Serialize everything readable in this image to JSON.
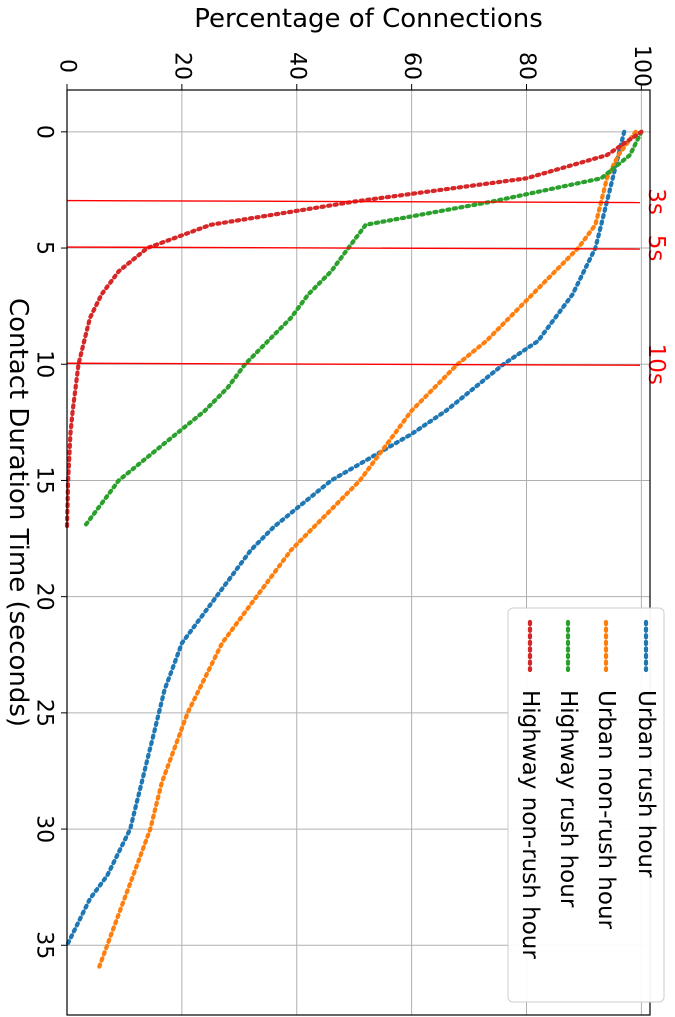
{
  "chart_data": {
    "type": "line",
    "title": "",
    "xlabel": "Contact Duration Time (seconds)",
    "ylabel": "Percentage of Connections",
    "xlim": [
      -1.8,
      38
    ],
    "ylim": [
      0,
      101.5
    ],
    "x_ticks": [
      0,
      5,
      10,
      15,
      20,
      25,
      30,
      35
    ],
    "y_ticks": [
      0,
      20,
      40,
      60,
      80,
      100
    ],
    "grid": true,
    "orientation": "rotated-90-clockwise",
    "legend": {
      "placement": "bottom-right",
      "entries": [
        "Urban rush hour",
        "Urban non-rush hour",
        "Highway rush hour",
        "Highway non-rush hour"
      ]
    },
    "series": [
      {
        "name": "Urban rush hour",
        "color": "#1f77b4",
        "style": "dotted",
        "x": [
          0,
          1,
          2,
          3,
          4,
          5,
          6,
          7,
          8,
          9,
          10,
          11,
          12,
          13,
          14,
          15,
          16,
          17,
          18,
          19,
          20,
          21,
          22,
          23,
          24,
          25,
          26,
          27,
          28,
          29,
          30,
          31,
          32,
          33,
          34,
          35
        ],
        "y": [
          97,
          96,
          95,
          94,
          93,
          92,
          90,
          88,
          85,
          82,
          76,
          71,
          66,
          60,
          53,
          46,
          41,
          36,
          32,
          29,
          26,
          23,
          20,
          18.5,
          17,
          16,
          15,
          14,
          13,
          12,
          11,
          9,
          7,
          4,
          2,
          0
        ]
      },
      {
        "name": "Urban non-rush hour",
        "color": "#ff7f0e",
        "style": "dotted",
        "x": [
          0,
          1,
          2,
          3,
          4,
          5,
          6,
          7,
          8,
          9,
          10,
          11,
          12,
          13,
          14,
          15,
          16,
          17,
          18,
          19,
          20,
          21,
          22,
          23,
          24,
          25,
          26,
          27,
          28,
          29,
          30,
          31,
          32,
          33,
          34,
          35,
          36
        ],
        "y": [
          99,
          96,
          94,
          93,
          92,
          89,
          85,
          81,
          77,
          73,
          68,
          64,
          60,
          57,
          54,
          51,
          47,
          43,
          39,
          36,
          33,
          30,
          27,
          25,
          23,
          21,
          19.5,
          18,
          16.5,
          15.5,
          14.5,
          13,
          11.5,
          10,
          8.5,
          7,
          5.5
        ]
      },
      {
        "name": "Highway rush hour",
        "color": "#2ca02c",
        "style": "dotted",
        "x": [
          0,
          1,
          2,
          3,
          4,
          5,
          6,
          7,
          8,
          9,
          10,
          11,
          12,
          13,
          14,
          15,
          16,
          17
        ],
        "y": [
          100,
          98,
          93,
          74,
          52,
          49,
          46,
          42,
          39,
          35,
          31,
          28,
          24,
          19,
          14,
          9,
          6,
          3
        ]
      },
      {
        "name": "Highway non-rush hour",
        "color": "#d62728",
        "style": "dotted",
        "x": [
          0,
          1,
          2,
          3,
          4,
          5,
          6,
          7,
          8,
          9,
          10,
          11,
          12,
          13,
          14,
          15,
          16,
          17
        ],
        "y": [
          100,
          94,
          80,
          50,
          25,
          14,
          9,
          6,
          4,
          3,
          2,
          1.5,
          1,
          0.6,
          0.4,
          0.2,
          0.1,
          0
        ]
      }
    ],
    "annotations": {
      "color": "#ff0000",
      "lines": [
        {
          "x": 3,
          "label": "3s"
        },
        {
          "x": 5,
          "label": "5s"
        },
        {
          "x": 10,
          "label": "10s"
        }
      ]
    }
  }
}
